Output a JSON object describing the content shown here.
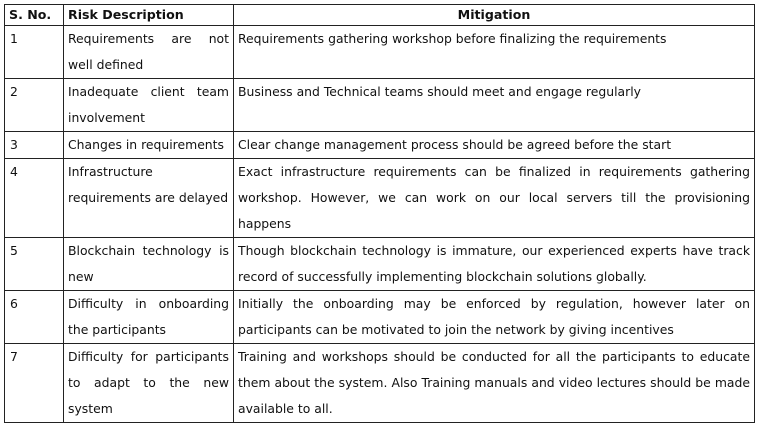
{
  "table": {
    "headers": {
      "sno": "S. No.",
      "risk": "Risk Description",
      "mitigation": "Mitigation"
    },
    "rows": [
      {
        "sno": "1",
        "risk": "Requirements are not well defined",
        "mitigation": "Requirements gathering workshop before finalizing the requirements"
      },
      {
        "sno": "2",
        "risk": "Inadequate client team involvement",
        "mitigation": "Business and Technical teams should meet and engage regularly"
      },
      {
        "sno": "3",
        "risk": "Changes in requirements",
        "mitigation": "Clear change management process should be agreed before the start"
      },
      {
        "sno": "4",
        "risk": "Infrastructure requirements are delayed",
        "mitigation": "Exact infrastructure requirements can be finalized in requirements gathering workshop. However, we can work on our local servers till the provisioning happens"
      },
      {
        "sno": "5",
        "risk": "Blockchain technology is new",
        "mitigation": "Though blockchain technology is immature, our experienced experts have track record of successfully implementing blockchain solutions globally."
      },
      {
        "sno": "6",
        "risk": "Difficulty in onboarding the participants",
        "mitigation": "Initially the onboarding may be enforced by regulation, however later on participants can be motivated to join the network by giving incentives"
      },
      {
        "sno": "7",
        "risk": "Difficulty for participants to adapt to the new system",
        "mitigation": "Training and workshops should be conducted for all the participants to educate them about the system. Also Training manuals and video lectures should be made available to all."
      }
    ]
  }
}
